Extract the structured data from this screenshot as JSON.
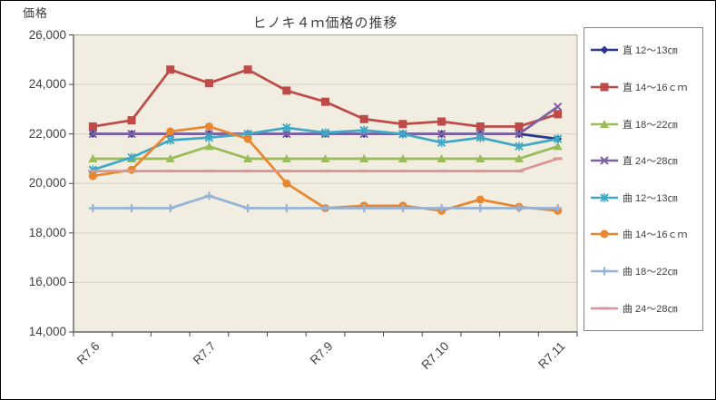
{
  "window": {
    "background": "#ffffff",
    "border_color": "#000000"
  },
  "chart_data": {
    "type": "line",
    "title": "ヒノキ４ｍ価格の推移",
    "ylabel": "価格",
    "xlabel": "",
    "ylim": [
      14000,
      26000
    ],
    "ytick_step": 2000,
    "ytick_labels": [
      "26,000",
      "24,000",
      "22,000",
      "20,000",
      "18,000",
      "16,000",
      "14,000"
    ],
    "categories": [
      "R7.6",
      "",
      "",
      "R7.7",
      "",
      "",
      "R7.9",
      "",
      "",
      "R7.10",
      "",
      "",
      "R7.11"
    ],
    "visible_x_labels": [
      "R7.6",
      "R7.7",
      "R7.9",
      "R7.10",
      "R7.11"
    ],
    "grid": true,
    "legend_position": "right",
    "plot_bg": "#f1ede1",
    "gridline_color": "#d6d2c4",
    "axis_color": "#4a4a4a",
    "border_color": "#a8a59a",
    "series": [
      {
        "name": "直 12～13㎝",
        "color": "#2b3590",
        "marker": "diamond",
        "values": [
          22000,
          22000,
          22000,
          22000,
          22000,
          22000,
          22000,
          22000,
          22000,
          22000,
          22000,
          22000,
          21800
        ]
      },
      {
        "name": "直 14～16ｃｍ",
        "color": "#be4b48",
        "marker": "square",
        "values": [
          22300,
          22550,
          24600,
          24050,
          24600,
          23750,
          23300,
          22600,
          22400,
          22500,
          22300,
          22300,
          22800
        ]
      },
      {
        "name": "直 18～22㎝",
        "color": "#9abb59",
        "marker": "triangle",
        "values": [
          21000,
          21000,
          21000,
          21500,
          21000,
          21000,
          21000,
          21000,
          21000,
          21000,
          21000,
          21000,
          21500
        ]
      },
      {
        "name": "直 24～28㎝",
        "color": "#7d60a0",
        "marker": "x",
        "values": [
          22000,
          22000,
          22000,
          22000,
          22000,
          22000,
          22000,
          22000,
          22000,
          22000,
          22000,
          22000,
          23100
        ]
      },
      {
        "name": "曲 12～13㎝",
        "color": "#3fa8c6",
        "marker": "asterisk",
        "values": [
          20550,
          21050,
          21750,
          21850,
          22000,
          22250,
          22050,
          22150,
          22000,
          21650,
          21850,
          21500,
          21800
        ]
      },
      {
        "name": "曲 14～16ｃｍ",
        "color": "#e8872f",
        "marker": "circle",
        "values": [
          20300,
          20550,
          22100,
          22300,
          21800,
          20000,
          19000,
          19100,
          19100,
          18900,
          19350,
          19050,
          18900
        ]
      },
      {
        "name": "曲 18～22㎝",
        "color": "#95b3d7",
        "marker": "plus",
        "values": [
          19000,
          19000,
          19000,
          19500,
          19000,
          19000,
          19000,
          19000,
          19000,
          19000,
          19000,
          19000,
          19000
        ]
      },
      {
        "name": "曲 24～28㎝",
        "color": "#d99694",
        "marker": "dash",
        "values": [
          20500,
          20500,
          20500,
          20500,
          20500,
          20500,
          20500,
          20500,
          20500,
          20500,
          20500,
          20500,
          21000
        ]
      }
    ]
  }
}
